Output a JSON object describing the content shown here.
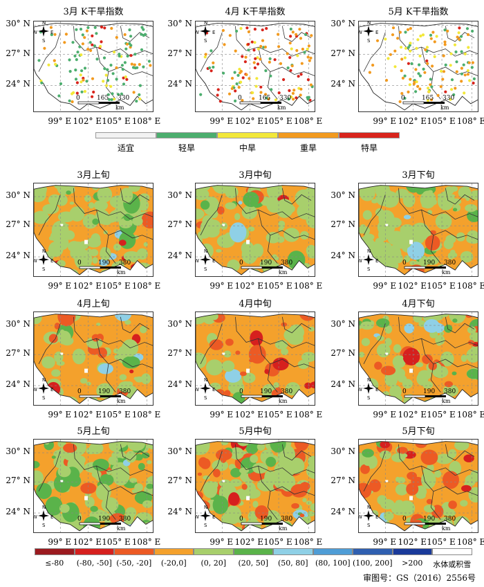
{
  "top_titles": [
    "3月  K干旱指数",
    "4月  K干旱指数",
    "5月  K干旱指数"
  ],
  "dekad_titles": [
    "3月上旬",
    "3月中旬",
    "3月下旬",
    "4月上旬",
    "4月中旬",
    "4月下旬",
    "5月上旬",
    "5月中旬",
    "5月下旬"
  ],
  "lat_labels": [
    "30° N",
    "27° N",
    "24° N"
  ],
  "lon_labels": [
    "99° E",
    "102° E",
    "105° E",
    "108° E"
  ],
  "compass": {
    "n": "N",
    "s": "S",
    "w": "W",
    "e": "E"
  },
  "top_scale": {
    "ticks": [
      "0",
      "165",
      "330"
    ],
    "unit": "km"
  },
  "dekad_scale": {
    "ticks": [
      "0",
      "190",
      "380"
    ],
    "unit": "km"
  },
  "top_legend": [
    {
      "label": "适宜",
      "color": "#f2f2f2"
    },
    {
      "label": "轻旱",
      "color": "#4cae6e"
    },
    {
      "label": "中旱",
      "color": "#f2e83a"
    },
    {
      "label": "重旱",
      "color": "#f29a1f"
    },
    {
      "label": "特旱",
      "color": "#d8241c"
    }
  ],
  "bottom_legend": [
    {
      "label": "≤-80",
      "color": "#9b1a1f"
    },
    {
      "label": "(-80, -50]",
      "color": "#d6201e"
    },
    {
      "label": "(-50, -20]",
      "color": "#ec5a24"
    },
    {
      "label": "(-20,0]",
      "color": "#f4a12c"
    },
    {
      "label": "(0, 20]",
      "color": "#a8cf6c"
    },
    {
      "label": "(20, 50]",
      "color": "#5ab34a"
    },
    {
      "label": "(50, 80]",
      "color": "#8fd0e6"
    },
    {
      "label": "(80, 100]",
      "color": "#4f9dd6"
    },
    {
      "label": "(100, 200]",
      "color": "#2f5fb0"
    },
    {
      "label": ">200",
      "color": "#1a3a9a"
    },
    {
      "label": "水体或积雪",
      "color": "#ffffff"
    }
  ],
  "approval_note": "审图号：GS（2016）2556号"
}
